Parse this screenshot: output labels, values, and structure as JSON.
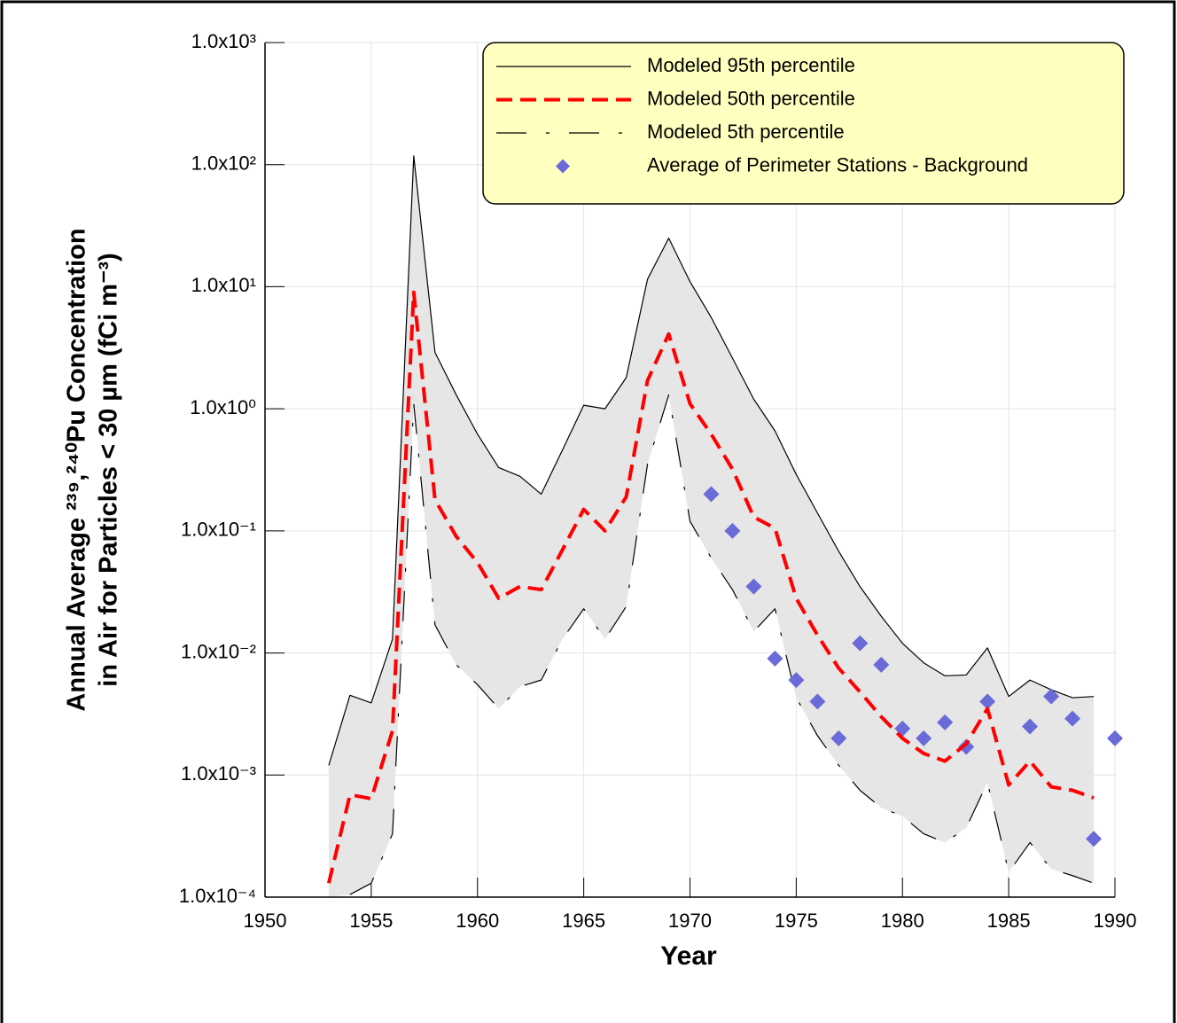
{
  "chart_data": {
    "type": "line",
    "xlabel": "Year",
    "ylabel": [
      "Annual Average ²³⁹,²⁴⁰Pu Concentration",
      "in Air for Particles < 30 µm (fCi m⁻³)"
    ],
    "x": [
      1953,
      1954,
      1955,
      1956,
      1957,
      1958,
      1959,
      1960,
      1961,
      1962,
      1963,
      1964,
      1965,
      1966,
      1967,
      1968,
      1969,
      1970,
      1971,
      1972,
      1973,
      1974,
      1975,
      1976,
      1977,
      1978,
      1979,
      1980,
      1981,
      1982,
      1983,
      1984,
      1985,
      1986,
      1987,
      1988,
      1989
    ],
    "series": [
      {
        "name": "Modeled 95th percentile",
        "color": "#000000",
        "style": "solid",
        "values": [
          0.0012,
          0.0045,
          0.0039,
          0.013,
          118,
          2.9,
          1.3,
          0.62,
          0.33,
          0.28,
          0.2,
          0.46,
          1.07,
          1.0,
          1.8,
          11.5,
          25,
          11,
          5.6,
          2.6,
          1.2,
          0.66,
          0.29,
          0.14,
          0.068,
          0.035,
          0.02,
          0.012,
          0.0083,
          0.0065,
          0.0066,
          0.011,
          0.0044,
          0.006,
          0.005,
          0.0043,
          0.0044
        ]
      },
      {
        "name": "Modeled 50th percentile",
        "color": "#ff0000",
        "style": "dashed",
        "values": [
          0.00013,
          0.00069,
          0.00064,
          0.0023,
          9,
          0.18,
          0.09,
          0.055,
          0.028,
          0.035,
          0.033,
          0.07,
          0.15,
          0.1,
          0.19,
          1.7,
          4.1,
          1.1,
          0.62,
          0.32,
          0.13,
          0.105,
          0.028,
          0.014,
          0.0075,
          0.0048,
          0.003,
          0.002,
          0.0015,
          0.0013,
          0.0018,
          0.0035,
          0.00083,
          0.0013,
          0.0008,
          0.00075,
          0.00065
        ]
      },
      {
        "name": "Modeled 5th percentile",
        "color": "#000000",
        "style": "long-dash",
        "values": [
          null,
          0.000105,
          0.00013,
          0.00033,
          1.1,
          0.017,
          0.008,
          0.0055,
          0.0035,
          0.0053,
          0.006,
          0.013,
          0.023,
          0.013,
          0.024,
          0.35,
          1.3,
          0.12,
          0.06,
          0.033,
          0.015,
          0.023,
          0.0043,
          0.0021,
          0.0012,
          0.00075,
          0.00054,
          0.00046,
          0.00033,
          0.00028,
          0.00037,
          0.00087,
          0.00016,
          0.00028,
          0.00017,
          0.00015,
          0.00013
        ]
      },
      {
        "name": "Average of Perimeter Stations - Background",
        "color": "#6a6ad8",
        "type": "scatter",
        "x": [
          1971,
          1972,
          1973,
          1974,
          1975,
          1976,
          1977,
          1978,
          1979,
          1980,
          1981,
          1982,
          1983,
          1984,
          1986,
          1987,
          1988,
          1989,
          1990
        ],
        "values": [
          0.2,
          0.1,
          0.035,
          0.009,
          0.006,
          0.004,
          0.002,
          0.012,
          0.008,
          0.0024,
          0.002,
          0.0027,
          0.0017,
          0.004,
          0.0025,
          0.0044,
          0.0029,
          0.0003,
          0.002
        ]
      }
    ],
    "band_color": "#e6e6e6",
    "xlim": [
      1950,
      1990
    ],
    "xticks": [
      1950,
      1955,
      1960,
      1965,
      1970,
      1975,
      1980,
      1985,
      1990
    ],
    "ylim": [
      0.0001,
      1000
    ],
    "yticks": [
      {
        "value": 0.0001,
        "label": "1.0x10⁻⁴"
      },
      {
        "value": 0.001,
        "label": "1.0x10⁻³"
      },
      {
        "value": 0.01,
        "label": "1.0x10⁻²"
      },
      {
        "value": 0.1,
        "label": "1.0x10⁻¹"
      },
      {
        "value": 1,
        "label": "1.0x10⁰"
      },
      {
        "value": 10,
        "label": "1.0x10¹"
      },
      {
        "value": 100,
        "label": "1.0x10²"
      },
      {
        "value": 1000,
        "label": "1.0x10³"
      }
    ],
    "log_y": true,
    "grid": true,
    "legend": "top-right"
  }
}
